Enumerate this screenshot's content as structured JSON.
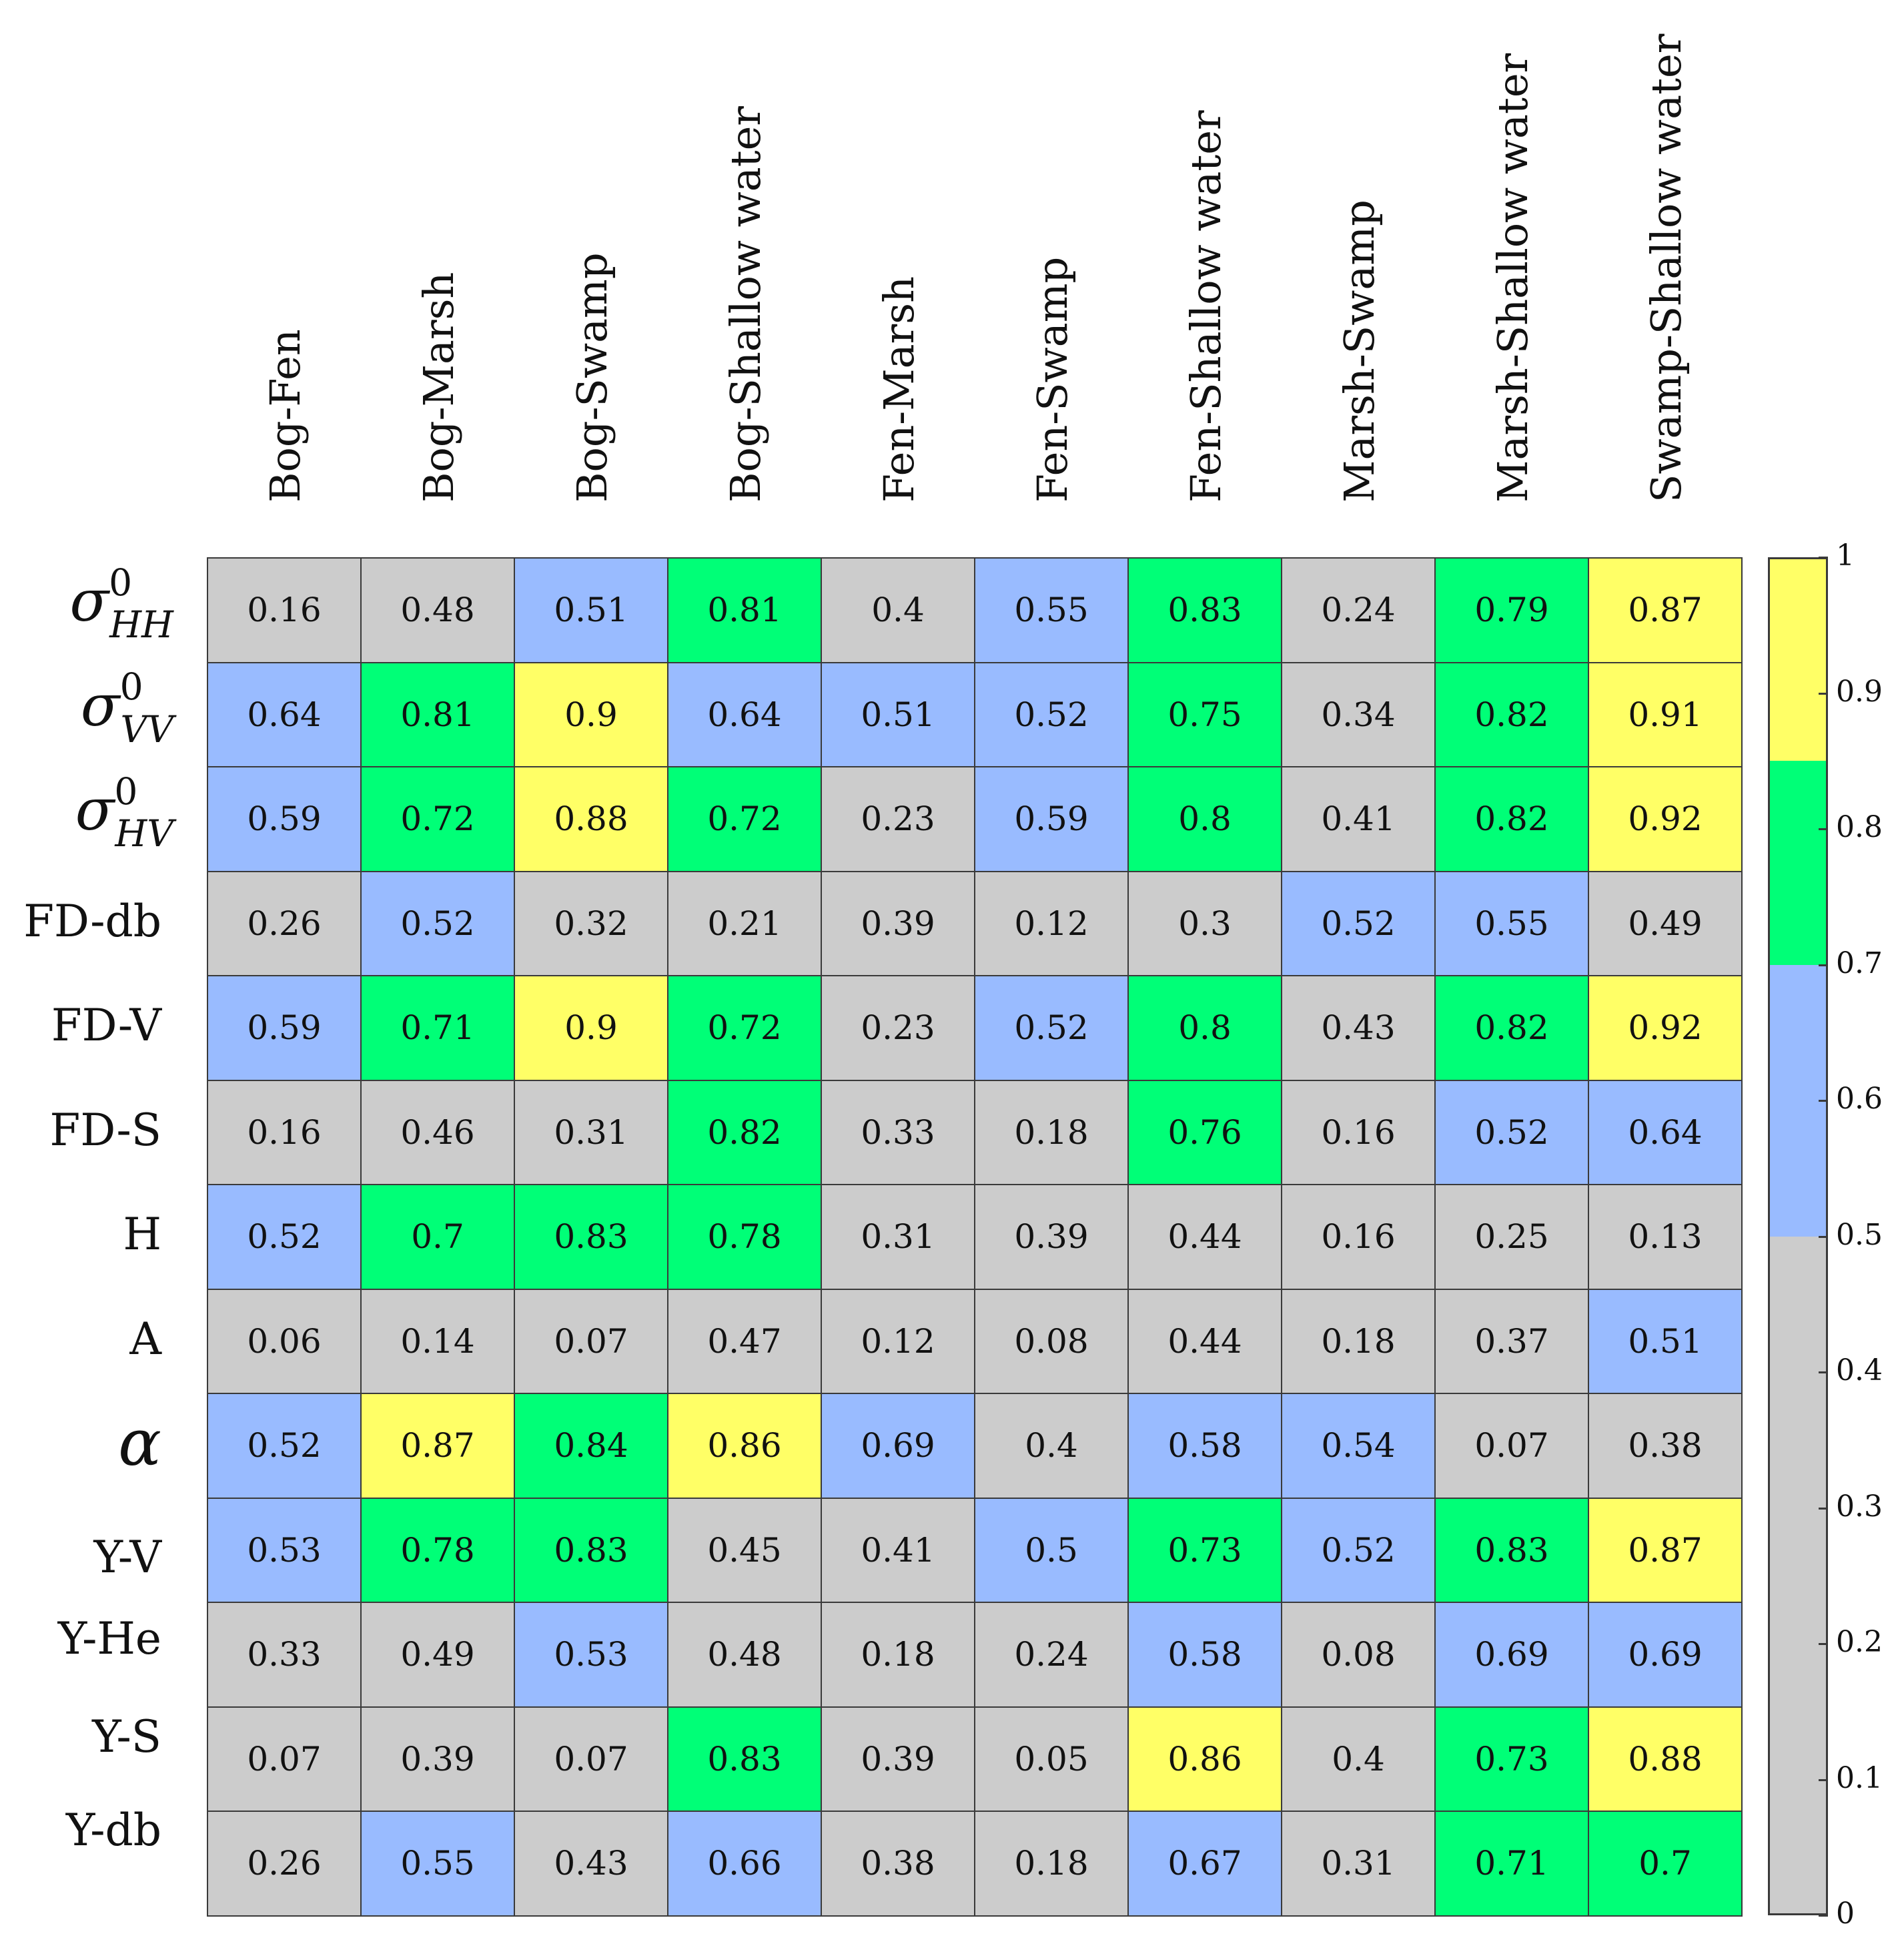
{
  "chart_data": {
    "type": "heatmap",
    "columns": [
      "Bog-Fen",
      "Bog-Marsh",
      "Bog-Swamp",
      "Bog-Shallow water",
      "Fen-Marsh",
      "Fen-Swamp",
      "Fen-Shallow water",
      "Marsh-Swamp",
      "Marsh-Shallow water",
      "Swamp-Shallow water"
    ],
    "rows": [
      {
        "label": "σHH0",
        "display": {
          "base": "σ",
          "sup": "0",
          "sub": "HH"
        },
        "kind": "sigma"
      },
      {
        "label": "σVV0",
        "display": {
          "base": "σ",
          "sup": "0",
          "sub": "VV"
        },
        "kind": "sigma"
      },
      {
        "label": "σHV0",
        "display": {
          "base": "σ",
          "sup": "0",
          "sub": "HV"
        },
        "kind": "sigma"
      },
      {
        "label": "FD-db",
        "kind": "text"
      },
      {
        "label": "FD-V",
        "kind": "text"
      },
      {
        "label": "FD-S",
        "kind": "text"
      },
      {
        "label": "H",
        "kind": "text"
      },
      {
        "label": "A",
        "kind": "text"
      },
      {
        "label": "α",
        "kind": "alpha"
      },
      {
        "label": "Y-V",
        "kind": "text"
      },
      {
        "label": "Y-He",
        "kind": "text"
      },
      {
        "label": "Y-S",
        "kind": "text"
      },
      {
        "label": "Y-db",
        "kind": "text"
      }
    ],
    "values": [
      [
        "0.16",
        "0.48",
        "0.51",
        "0.81",
        "0.4",
        "0.55",
        "0.83",
        "0.24",
        "0.79",
        "0.87"
      ],
      [
        "0.64",
        "0.81",
        "0.9",
        "0.64",
        "0.51",
        "0.52",
        "0.75",
        "0.34",
        "0.82",
        "0.91"
      ],
      [
        "0.59",
        "0.72",
        "0.88",
        "0.72",
        "0.23",
        "0.59",
        "0.8",
        "0.41",
        "0.82",
        "0.92"
      ],
      [
        "0.26",
        "0.52",
        "0.32",
        "0.21",
        "0.39",
        "0.12",
        "0.3",
        "0.52",
        "0.55",
        "0.49"
      ],
      [
        "0.59",
        "0.71",
        "0.9",
        "0.72",
        "0.23",
        "0.52",
        "0.8",
        "0.43",
        "0.82",
        "0.92"
      ],
      [
        "0.16",
        "0.46",
        "0.31",
        "0.82",
        "0.33",
        "0.18",
        "0.76",
        "0.16",
        "0.52",
        "0.64"
      ],
      [
        "0.52",
        "0.7",
        "0.83",
        "0.78",
        "0.31",
        "0.39",
        "0.44",
        "0.16",
        "0.25",
        "0.13"
      ],
      [
        "0.06",
        "0.14",
        "0.07",
        "0.47",
        "0.12",
        "0.08",
        "0.44",
        "0.18",
        "0.37",
        "0.51"
      ],
      [
        "0.52",
        "0.87",
        "0.84",
        "0.86",
        "0.69",
        "0.4",
        "0.58",
        "0.54",
        "0.07",
        "0.38"
      ],
      [
        "0.53",
        "0.78",
        "0.83",
        "0.45",
        "0.41",
        "0.5",
        "0.73",
        "0.52",
        "0.83",
        "0.87"
      ],
      [
        "0.33",
        "0.49",
        "0.53",
        "0.48",
        "0.18",
        "0.24",
        "0.58",
        "0.08",
        "0.69",
        "0.69"
      ],
      [
        "0.07",
        "0.39",
        "0.07",
        "0.83",
        "0.39",
        "0.05",
        "0.86",
        "0.4",
        "0.73",
        "0.88"
      ],
      [
        "0.26",
        "0.55",
        "0.43",
        "0.66",
        "0.38",
        "0.18",
        "0.67",
        "0.31",
        "0.71",
        "0.7"
      ]
    ],
    "colorscale": [
      {
        "from": 0,
        "to": 0.5,
        "color": "#cccccc"
      },
      {
        "from": 0.5,
        "to": 0.7,
        "color": "#99bbff"
      },
      {
        "from": 0.7,
        "to": 0.85,
        "color": "#00ff77"
      },
      {
        "from": 0.85,
        "to": 1,
        "color": "#ffff66"
      }
    ],
    "colorbar": {
      "range": [
        0,
        1
      ],
      "ticks": [
        "0",
        "0.1",
        "0.2",
        "0.3",
        "0.4",
        "0.5",
        "0.6",
        "0.7",
        "0.8",
        "0.9",
        "1"
      ]
    }
  }
}
